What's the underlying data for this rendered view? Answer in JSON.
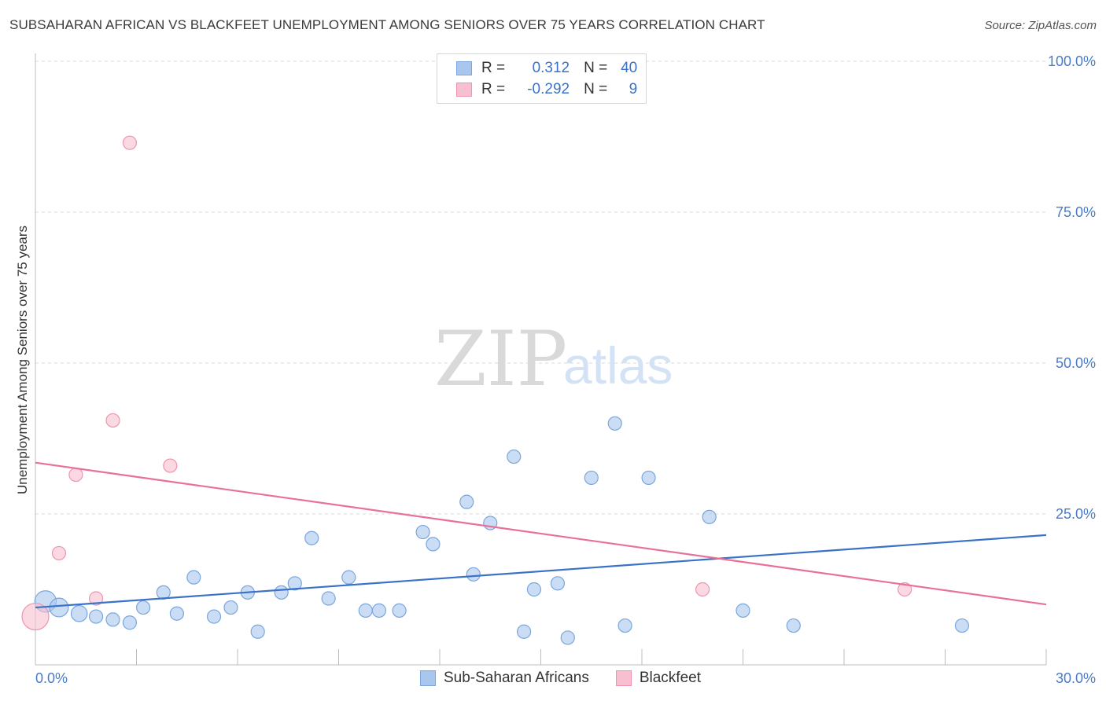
{
  "title": "SUBSAHARAN AFRICAN VS BLACKFEET UNEMPLOYMENT AMONG SENIORS OVER 75 YEARS CORRELATION CHART",
  "source": "Source: ZipAtlas.com",
  "watermark": {
    "zip": "ZIP",
    "atlas": "atlas"
  },
  "legend": {
    "rows": [
      {
        "r_label": "R =",
        "r_value": "0.312",
        "n_label": "N =",
        "n_value": "40",
        "color": "#a9c7ee",
        "border": "#7aa6dc"
      },
      {
        "r_label": "R =",
        "r_value": "-0.292",
        "n_label": "N =",
        "n_value": "9",
        "color": "#f7bfcf",
        "border": "#ee94ae"
      }
    ]
  },
  "bottom_legend": [
    {
      "label": "Sub-Saharan Africans",
      "color": "#a9c7ee",
      "border": "#7aa6dc"
    },
    {
      "label": "Blackfeet",
      "color": "#f7bfcf",
      "border": "#ee94ae"
    }
  ],
  "chart_data": {
    "type": "scatter",
    "title": "SUBSAHARAN AFRICAN VS BLACKFEET UNEMPLOYMENT AMONG SENIORS OVER 75 YEARS CORRELATION CHART",
    "xlabel": "",
    "ylabel": "Unemployment Among Seniors over 75 years",
    "xlim": [
      0,
      30
    ],
    "ylim": [
      0,
      100
    ],
    "x_tick_labels": [
      "0.0%",
      "30.0%"
    ],
    "y_ticks": [
      25,
      50,
      75,
      100
    ],
    "y_tick_labels": [
      "25.0%",
      "50.0%",
      "75.0%",
      "100.0%"
    ],
    "series": [
      {
        "name": "Sub-Saharan Africans",
        "color": "#a9c7ee",
        "stroke": "#7aa6dc",
        "trend_color": "#3a72c8",
        "trend": [
          [
            0,
            9.5
          ],
          [
            30,
            21.5
          ]
        ],
        "points": [
          [
            0.3,
            10.5,
            1.6
          ],
          [
            0.7,
            9.5,
            1.4
          ],
          [
            1.3,
            8.5,
            1.2
          ],
          [
            1.8,
            8.0,
            1
          ],
          [
            2.3,
            7.5,
            1
          ],
          [
            2.8,
            7.0,
            1
          ],
          [
            3.2,
            9.5,
            1
          ],
          [
            3.8,
            12.0,
            1
          ],
          [
            4.2,
            8.5,
            1
          ],
          [
            4.7,
            14.5,
            1
          ],
          [
            5.3,
            8.0,
            1
          ],
          [
            5.8,
            9.5,
            1
          ],
          [
            6.3,
            12.0,
            1
          ],
          [
            6.6,
            5.5,
            1
          ],
          [
            7.3,
            12.0,
            1
          ],
          [
            7.7,
            13.5,
            1
          ],
          [
            8.2,
            21.0,
            1
          ],
          [
            8.7,
            11.0,
            1
          ],
          [
            9.3,
            14.5,
            1
          ],
          [
            9.8,
            9.0,
            1
          ],
          [
            10.2,
            9.0,
            1
          ],
          [
            10.8,
            9.0,
            1
          ],
          [
            11.5,
            22.0,
            1
          ],
          [
            11.8,
            20.0,
            1
          ],
          [
            12.8,
            27.0,
            1
          ],
          [
            13.0,
            15.0,
            1
          ],
          [
            13.5,
            23.5,
            1
          ],
          [
            14.2,
            34.5,
            1
          ],
          [
            14.5,
            5.5,
            1
          ],
          [
            14.8,
            12.5,
            1
          ],
          [
            15.5,
            13.5,
            1
          ],
          [
            15.8,
            4.5,
            1
          ],
          [
            16.5,
            31.0,
            1
          ],
          [
            17.2,
            40.0,
            1
          ],
          [
            17.5,
            6.5,
            1
          ],
          [
            18.2,
            31.0,
            1
          ],
          [
            20.0,
            24.5,
            1
          ],
          [
            21.0,
            9.0,
            1
          ],
          [
            22.5,
            6.5,
            1
          ],
          [
            27.5,
            6.5,
            1
          ]
        ]
      },
      {
        "name": "Blackfeet",
        "color": "#f7bfcf",
        "stroke": "#ee94ae",
        "trend_color": "#e8709a",
        "trend": [
          [
            0,
            33.5
          ],
          [
            30,
            10.0
          ]
        ],
        "points": [
          [
            0.0,
            8.0,
            2.0
          ],
          [
            0.7,
            18.5,
            1
          ],
          [
            1.2,
            31.5,
            1
          ],
          [
            1.8,
            11.0,
            1
          ],
          [
            2.3,
            40.5,
            1
          ],
          [
            2.8,
            86.5,
            1
          ],
          [
            4.0,
            33.0,
            1
          ],
          [
            19.8,
            12.5,
            1
          ],
          [
            25.8,
            12.5,
            1
          ]
        ]
      }
    ]
  }
}
